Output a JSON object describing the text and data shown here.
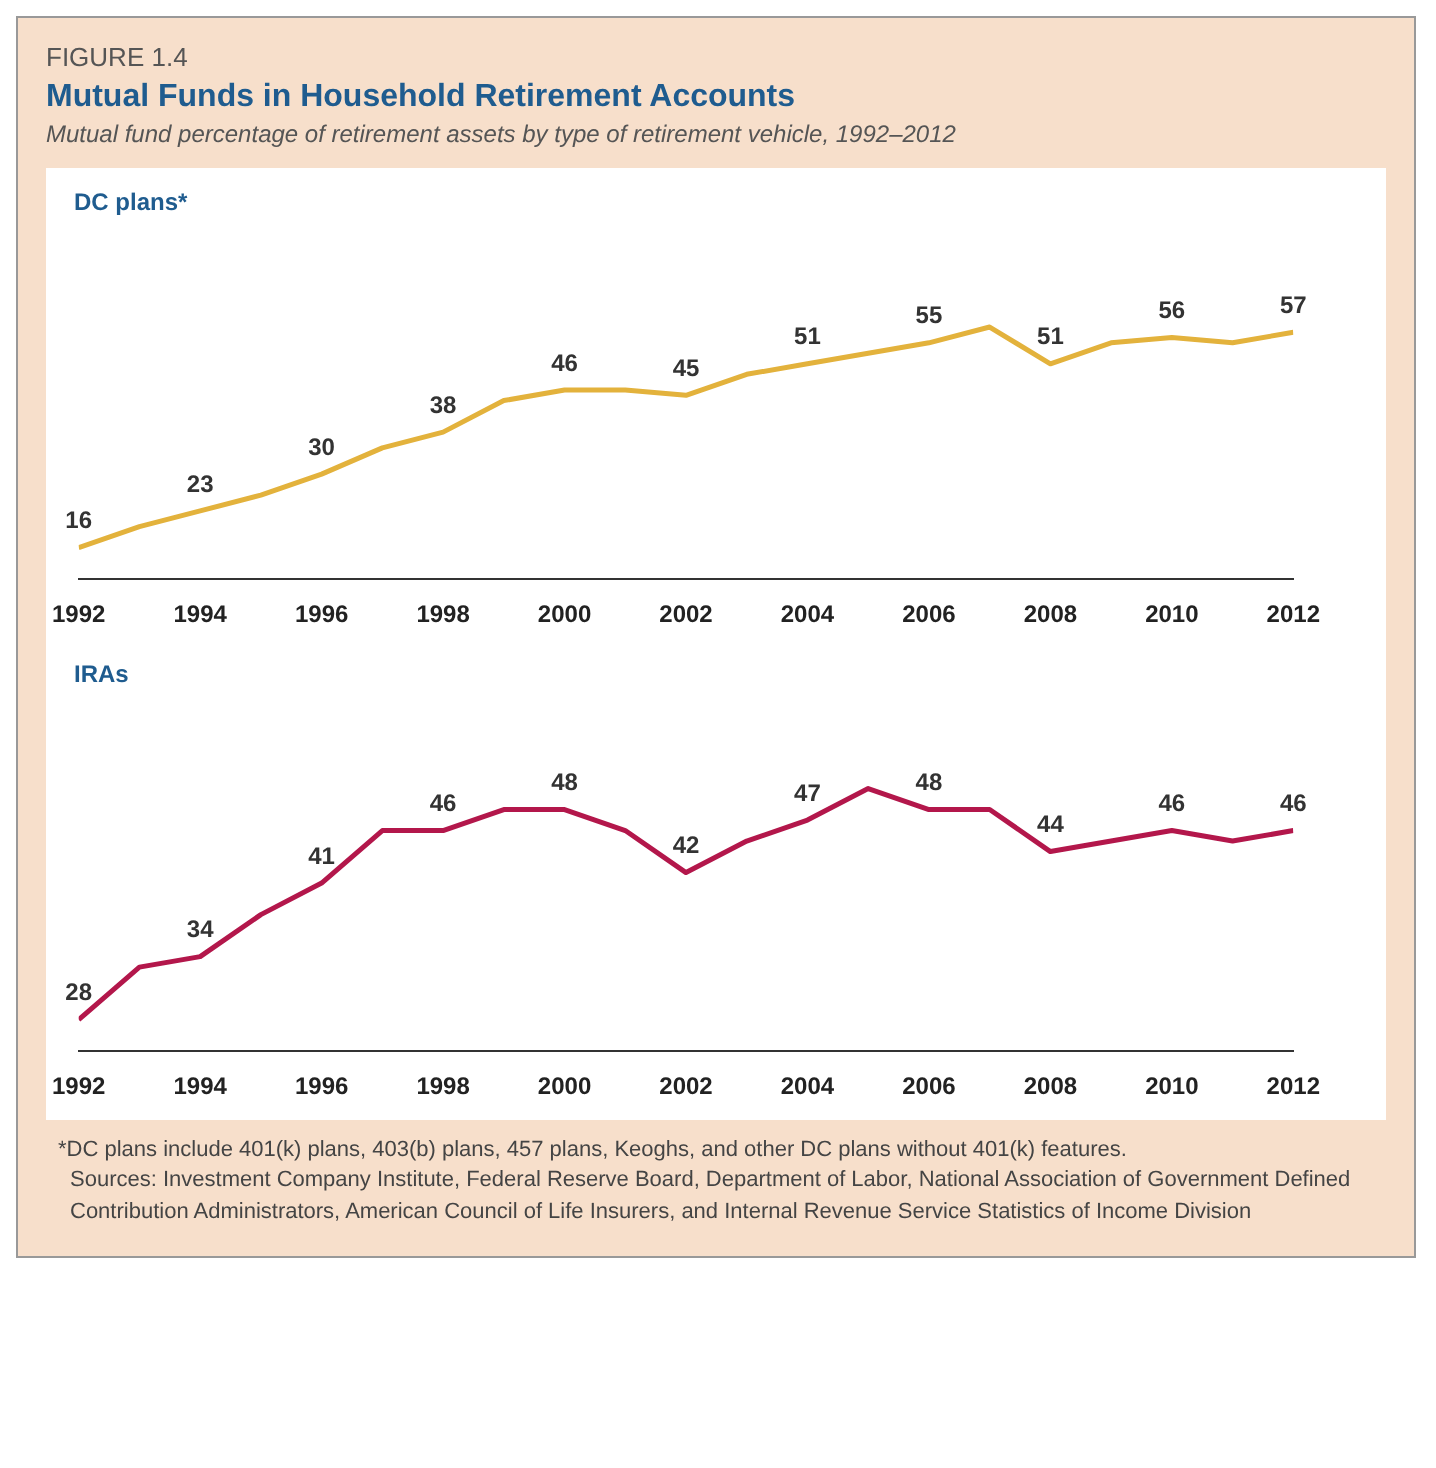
{
  "chart_data": [
    {
      "type": "line",
      "annotations": [
        "FIGURE 1.4"
      ],
      "title": "Mutual Funds in Household Retirement Accounts",
      "subtitle": "Mutual fund percentage of retirement assets by type of retirement vehicle, 1992–2012",
      "x": [
        1992,
        1993,
        1994,
        1995,
        1996,
        1997,
        1998,
        1999,
        2000,
        2001,
        2002,
        2003,
        2004,
        2005,
        2006,
        2007,
        2008,
        2009,
        2010,
        2011,
        2012
      ],
      "xlim": [
        1992,
        2012
      ],
      "xticks": [
        1992,
        1994,
        1996,
        1998,
        2000,
        2002,
        2004,
        2006,
        2008,
        2010,
        2012
      ],
      "series": [
        {
          "name": "DC plans*",
          "color": "#e3b23c",
          "values": [
            16,
            20,
            23,
            26,
            30,
            35,
            38,
            44,
            46,
            46,
            45,
            49,
            51,
            53,
            55,
            58,
            51,
            55,
            56,
            55,
            57
          ],
          "value_labels": [
            "16",
            null,
            "23",
            null,
            "30",
            null,
            "38",
            null,
            "46",
            null,
            "45",
            null,
            "51",
            null,
            "55",
            null,
            "51",
            null,
            "56",
            null,
            "57"
          ]
        }
      ]
    },
    {
      "type": "line",
      "annotations": [
        "*DC plans include 401(k) plans, 403(b) plans, 457 plans, Keoghs, and other DC plans without 401(k) features.",
        "Sources: Investment Company Institute, Federal Reserve Board, Department of Labor, National Association of Government Defined Contribution Administrators, American Council of Life Insurers, and Internal Revenue Service Statistics of Income Division"
      ],
      "x": [
        1992,
        1993,
        1994,
        1995,
        1996,
        1997,
        1998,
        1999,
        2000,
        2001,
        2002,
        2003,
        2004,
        2005,
        2006,
        2007,
        2008,
        2009,
        2010,
        2011,
        2012
      ],
      "xlim": [
        1992,
        2012
      ],
      "xticks": [
        1992,
        1994,
        1996,
        1998,
        2000,
        2002,
        2004,
        2006,
        2008,
        2010,
        2012
      ],
      "series": [
        {
          "name": "IRAs",
          "color": "#b3174b",
          "values": [
            28,
            33,
            34,
            38,
            41,
            46,
            46,
            48,
            48,
            46,
            42,
            45,
            47,
            50,
            48,
            48,
            44,
            45,
            46,
            45,
            46
          ],
          "value_labels": [
            "28",
            null,
            "34",
            null,
            "41",
            null,
            "46",
            null,
            "48",
            null,
            "42",
            null,
            "47",
            null,
            "48",
            null,
            "44",
            null,
            "46",
            null,
            "46"
          ]
        }
      ]
    }
  ]
}
